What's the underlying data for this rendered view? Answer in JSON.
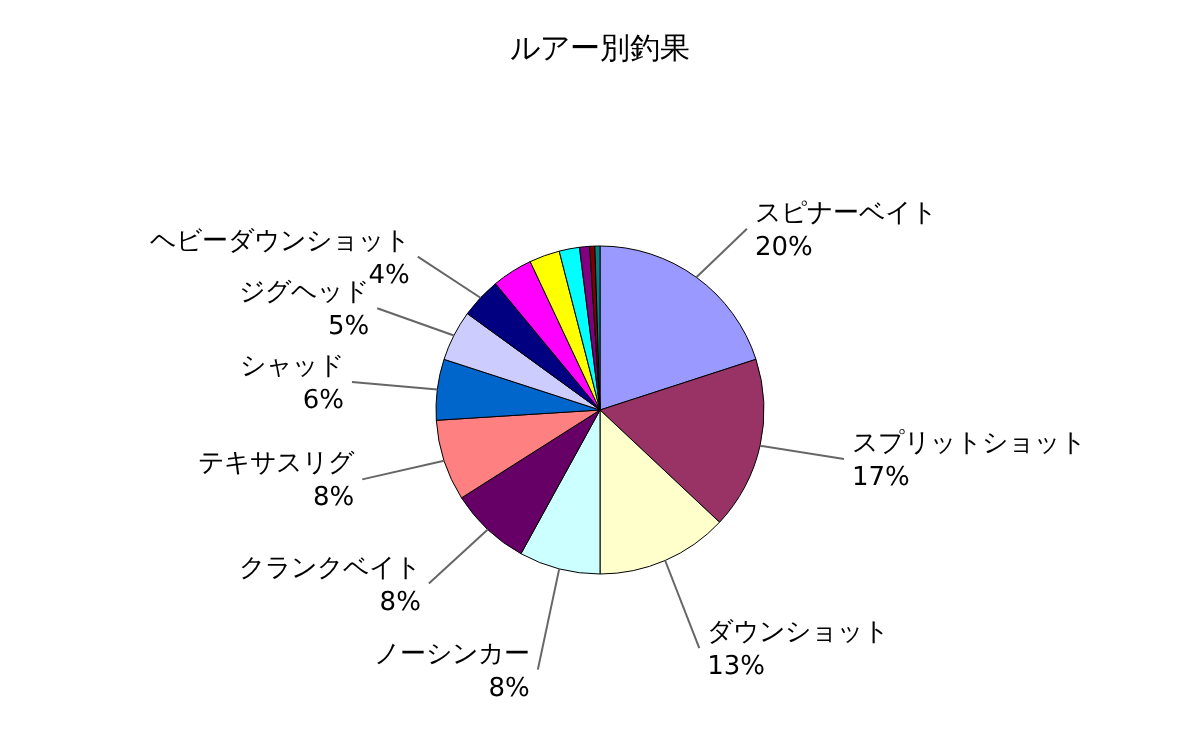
{
  "chart_data": {
    "type": "pie",
    "title": "ルアー別釣果",
    "categories": [
      "スピナーベイト",
      "スプリットショット",
      "ダウンショット",
      "ノーシンカー",
      "クランクベイト",
      "テキサスリグ",
      "シャッド",
      "ジグヘッド",
      "ヘビーダウンショット",
      null,
      null,
      null,
      null,
      null,
      null
    ],
    "values": [
      20,
      17,
      13,
      8,
      8,
      8,
      6,
      5,
      4,
      4,
      3,
      2,
      1,
      0.5,
      0.5
    ],
    "value_labels": [
      "20%",
      "17%",
      "13%",
      "8%",
      "8%",
      "8%",
      "6%",
      "5%",
      "4%",
      null,
      null,
      null,
      null,
      null,
      null
    ],
    "colors": [
      "#9999ff",
      "#993366",
      "#ffffcc",
      "#ccffff",
      "#660066",
      "#ff8080",
      "#0066cc",
      "#ccccff",
      "#000080",
      "#ff00ff",
      "#ffff00",
      "#00ffff",
      "#800080",
      "#800000",
      "#008080"
    ]
  }
}
